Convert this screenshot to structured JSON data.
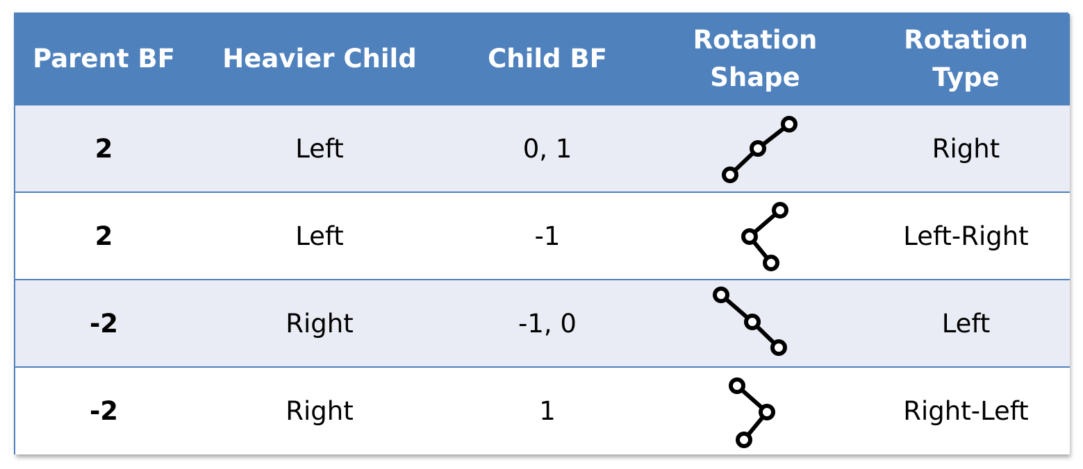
{
  "table": {
    "headers": {
      "parent_bf": "Parent BF",
      "heavier_child": "Heavier Child",
      "child_bf": "Child BF",
      "rotation_shape_line1": "Rotation",
      "rotation_shape_line2": "Shape",
      "rotation_type_line1": "Rotation",
      "rotation_type_line2": "Type"
    },
    "rows": [
      {
        "parent_bf": "2",
        "heavier_child": "Left",
        "child_bf": "0, 1",
        "shape": "left-left-line-icon",
        "rotation_type": "Right"
      },
      {
        "parent_bf": "2",
        "heavier_child": "Left",
        "child_bf": "-1",
        "shape": "left-right-zigzag-icon",
        "rotation_type": "Left-Right"
      },
      {
        "parent_bf": "-2",
        "heavier_child": "Right",
        "child_bf": "-1, 0",
        "shape": "right-right-line-icon",
        "rotation_type": "Left"
      },
      {
        "parent_bf": "-2",
        "heavier_child": "Right",
        "child_bf": "1",
        "shape": "right-left-zigzag-icon",
        "rotation_type": "Right-Left"
      }
    ]
  },
  "colors": {
    "header_background": "#4f81bd",
    "header_text": "#ffffff",
    "shaded_row": "#e9ecf4",
    "plain_row": "#ffffff",
    "border": "#4f81bd"
  }
}
